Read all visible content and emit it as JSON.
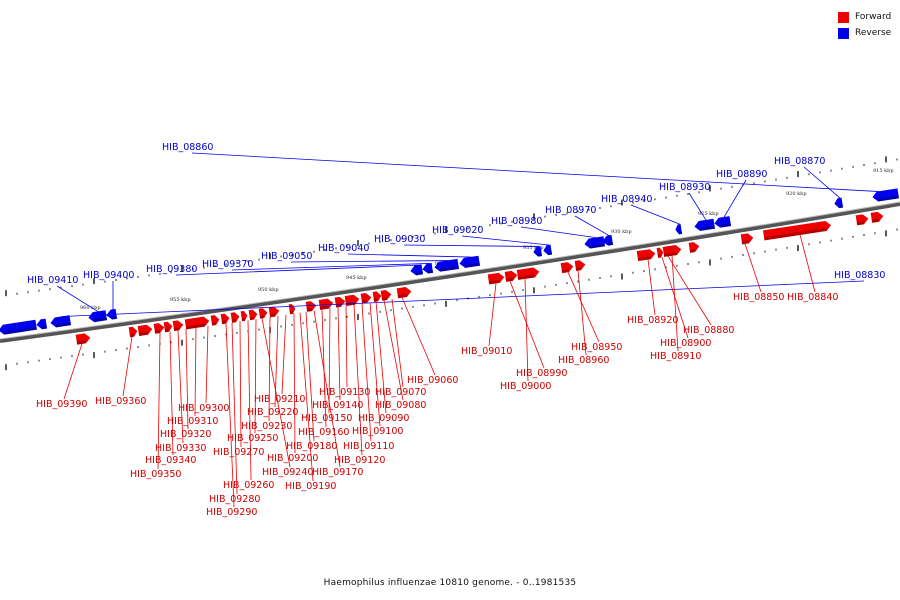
{
  "legend": {
    "forward": {
      "label": "Forward",
      "color": "#ee0000"
    },
    "reverse": {
      "label": "Reverse",
      "color": "#0000ee"
    }
  },
  "caption": "Haemophilus influenzae 10810 genome. - 0..1981535",
  "ticks": [
    "915 kbp",
    "920 kbp",
    "925 kbp",
    "930 kbp",
    "935 kbp",
    "940 kbp",
    "945 kbp",
    "950 kbp",
    "955 kbp",
    "960 kbp"
  ],
  "reverse_genes": [
    "HIB_08860",
    "HIB_08870",
    "HIB_08890",
    "HIB_08930",
    "HIB_08940",
    "HIB_08970",
    "HIB_08980",
    "HIB_09020",
    "HIB_09030",
    "HIB_09040",
    "HIB_09050",
    "HIB_09370",
    "HIB_09380",
    "HIB_09400",
    "HIB_09410",
    "HIB_08830"
  ],
  "forward_genes": [
    "HIB_08850",
    "HIB_08840",
    "HIB_08920",
    "HIB_08880",
    "HIB_08900",
    "HIB_08910",
    "HIB_08950",
    "HIB_08960",
    "HIB_09010",
    "HIB_08990",
    "HIB_09000",
    "HIB_09060",
    "HIB_09070",
    "HIB_09080",
    "HIB_09090",
    "HIB_09100",
    "HIB_09110",
    "HIB_09120",
    "HIB_09130",
    "HIB_09140",
    "HIB_09150",
    "HIB_09160",
    "HIB_09170",
    "HIB_09180",
    "HIB_09190",
    "HIB_09200",
    "HIB_09210",
    "HIB_09220",
    "HIB_09230",
    "HIB_09240",
    "HIB_09250",
    "HIB_09260",
    "HIB_09270",
    "HIB_09280",
    "HIB_09290",
    "HIB_09300",
    "HIB_09310",
    "HIB_09320",
    "HIB_09330",
    "HIB_09340",
    "HIB_09350",
    "HIB_09360",
    "HIB_09390"
  ]
}
